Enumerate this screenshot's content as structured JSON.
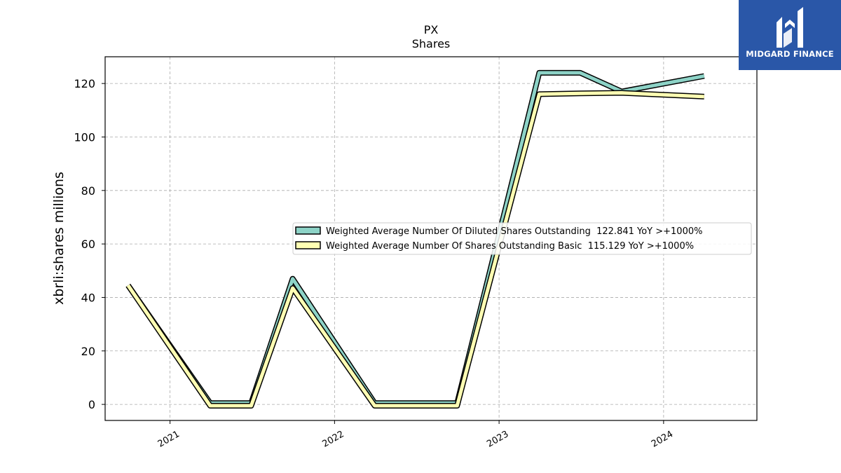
{
  "chart_data": {
    "type": "line",
    "title": "PX",
    "subtitle": "Shares",
    "ylabel": "xbrli:shares millions",
    "xlabel": "",
    "ylim": [
      -6,
      130
    ],
    "yticks": [
      0,
      20,
      40,
      60,
      80,
      100,
      120
    ],
    "xlim": [
      "2020-08-10",
      "2024-07-26"
    ],
    "xticks": [
      {
        "label": "2021",
        "date": "2021-01-01"
      },
      {
        "label": "2022",
        "date": "2022-01-01"
      },
      {
        "label": "2023",
        "date": "2023-01-01"
      },
      {
        "label": "2024",
        "date": "2024-01-01"
      }
    ],
    "grid": true,
    "legend_position": "center-right",
    "series": [
      {
        "name": "Weighted Average Number Of Diluted Shares Outstanding  122.841 YoY >+1000%",
        "color": "#8dd3c7",
        "points": [
          {
            "date": "2020-09-30",
            "value": 44.5
          },
          {
            "date": "2021-03-31",
            "value": 0.5
          },
          {
            "date": "2021-06-30",
            "value": 0.5
          },
          {
            "date": "2021-09-30",
            "value": 47.0
          },
          {
            "date": "2022-03-31",
            "value": 0.5
          },
          {
            "date": "2022-06-30",
            "value": 0.5
          },
          {
            "date": "2022-09-30",
            "value": 0.5
          },
          {
            "date": "2023-03-31",
            "value": 124.0
          },
          {
            "date": "2023-06-30",
            "value": 124.0
          },
          {
            "date": "2023-09-30",
            "value": 117.0
          },
          {
            "date": "2024-03-31",
            "value": 122.8
          }
        ]
      },
      {
        "name": "Weighted Average Number Of Shares Outstanding Basic  115.129 YoY >+1000%",
        "color": "#ffffb3",
        "points": [
          {
            "date": "2020-09-30",
            "value": 44.5
          },
          {
            "date": "2021-03-31",
            "value": -0.5
          },
          {
            "date": "2021-06-30",
            "value": -0.5
          },
          {
            "date": "2021-09-30",
            "value": 43.5
          },
          {
            "date": "2022-03-31",
            "value": -0.5
          },
          {
            "date": "2022-06-30",
            "value": -0.5
          },
          {
            "date": "2022-09-30",
            "value": -0.5
          },
          {
            "date": "2023-03-31",
            "value": 116.0
          },
          {
            "date": "2023-06-30",
            "value": 116.3
          },
          {
            "date": "2023-09-30",
            "value": 116.5
          },
          {
            "date": "2024-03-31",
            "value": 115.1
          }
        ]
      }
    ]
  },
  "logo": {
    "text": "MIDGARD FINANCE",
    "background": "#2a57a8"
  }
}
